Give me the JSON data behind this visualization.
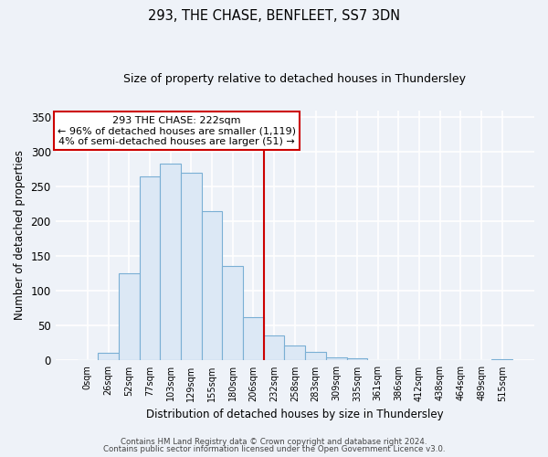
{
  "title": "293, THE CHASE, BENFLEET, SS7 3DN",
  "subtitle": "Size of property relative to detached houses in Thundersley",
  "xlabel": "Distribution of detached houses by size in Thundersley",
  "ylabel": "Number of detached properties",
  "bar_labels": [
    "0sqm",
    "26sqm",
    "52sqm",
    "77sqm",
    "103sqm",
    "129sqm",
    "155sqm",
    "180sqm",
    "206sqm",
    "232sqm",
    "258sqm",
    "283sqm",
    "309sqm",
    "335sqm",
    "361sqm",
    "386sqm",
    "412sqm",
    "438sqm",
    "464sqm",
    "489sqm",
    "515sqm"
  ],
  "bar_values": [
    0,
    11,
    126,
    265,
    283,
    270,
    215,
    136,
    62,
    36,
    21,
    13,
    5,
    3,
    0,
    0,
    0,
    0,
    0,
    0,
    2
  ],
  "bar_color": "#dce8f5",
  "bar_edgecolor": "#7aafd4",
  "vline_color": "#cc0000",
  "vline_x_index": 9,
  "annotation_title": "293 THE CHASE: 222sqm",
  "annotation_line1": "← 96% of detached houses are smaller (1,119)",
  "annotation_line2": "4% of semi-detached houses are larger (51) →",
  "annotation_box_edgecolor": "#cc0000",
  "annotation_box_facecolor": "#ffffff",
  "ylim": [
    0,
    360
  ],
  "yticks": [
    0,
    50,
    100,
    150,
    200,
    250,
    300,
    350
  ],
  "bg_color": "#eef2f8",
  "plot_bg_color": "#eef2f8",
  "grid_color": "#ffffff",
  "footer1": "Contains HM Land Registry data © Crown copyright and database right 2024.",
  "footer2": "Contains public sector information licensed under the Open Government Licence v3.0.",
  "figsize": [
    6.0,
    5.0
  ],
  "dpi": 100
}
